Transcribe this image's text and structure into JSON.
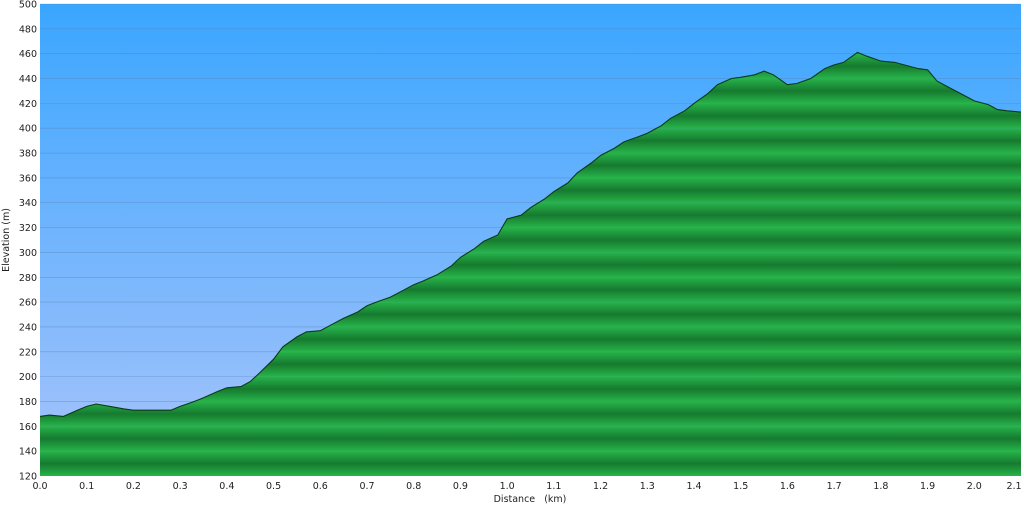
{
  "colors": {
    "sky_top": "#3aa6ff",
    "sky_bottom": "#a9c4fb",
    "terrain_light": "#27b34a",
    "terrain_dark": "#167a2f",
    "outline": "#0d3a16",
    "grid": "#5a7fb0"
  },
  "chart_data": {
    "type": "area",
    "title": "",
    "xlabel": "Distance   (km)",
    "ylabel": "Elevation (m)",
    "xlim": [
      0.0,
      2.1
    ],
    "ylim": [
      120,
      500
    ],
    "grid": true,
    "legend": "none",
    "x_ticks": [
      "0.0",
      "0.1",
      "0.2",
      "0.3",
      "0.4",
      "0.5",
      "0.6",
      "0.7",
      "0.8",
      "0.9",
      "1.0",
      "1.1",
      "1.2",
      "1.3",
      "1.4",
      "1.5",
      "1.6",
      "1.7",
      "1.8",
      "1.9",
      "2.0",
      "2.1"
    ],
    "y_ticks": [
      120,
      140,
      160,
      180,
      200,
      220,
      240,
      260,
      280,
      300,
      320,
      340,
      360,
      380,
      400,
      420,
      440,
      460,
      480,
      500
    ],
    "series": [
      {
        "x": [
          0.0,
          0.02,
          0.05,
          0.08,
          0.1,
          0.12,
          0.15,
          0.18,
          0.2,
          0.22,
          0.25,
          0.28,
          0.3,
          0.33,
          0.35,
          0.38,
          0.4,
          0.43,
          0.45,
          0.47,
          0.5,
          0.52,
          0.55,
          0.57,
          0.6,
          0.62,
          0.65,
          0.68,
          0.7,
          0.72,
          0.75,
          0.78,
          0.8,
          0.82,
          0.85,
          0.88,
          0.9,
          0.93,
          0.95,
          0.98,
          1.0,
          1.03,
          1.05,
          1.08,
          1.1,
          1.13,
          1.15,
          1.18,
          1.2,
          1.23,
          1.25,
          1.28,
          1.3,
          1.33,
          1.35,
          1.38,
          1.4,
          1.43,
          1.45,
          1.48,
          1.5,
          1.53,
          1.55,
          1.57,
          1.6,
          1.62,
          1.65,
          1.68,
          1.7,
          1.72,
          1.75,
          1.77,
          1.8,
          1.83,
          1.85,
          1.88,
          1.9,
          1.92,
          1.95,
          1.97,
          2.0,
          2.03,
          2.05,
          2.07,
          2.1
        ],
        "y": [
          168,
          169,
          168,
          173,
          176,
          178,
          176,
          174,
          173,
          173,
          173,
          173,
          176,
          180,
          183,
          188,
          191,
          192,
          196,
          203,
          214,
          224,
          232,
          236,
          237,
          241,
          247,
          252,
          257,
          260,
          264,
          270,
          274,
          277,
          282,
          289,
          296,
          303,
          309,
          314,
          327,
          330,
          336,
          343,
          349,
          356,
          364,
          372,
          378,
          384,
          389,
          393,
          396,
          402,
          408,
          414,
          420,
          428,
          435,
          440,
          441,
          443,
          446,
          443,
          435,
          436,
          440,
          448,
          451,
          453,
          461,
          458,
          454,
          453,
          451,
          448,
          447,
          438,
          432,
          428,
          422,
          419,
          415,
          414,
          413
        ]
      }
    ]
  }
}
